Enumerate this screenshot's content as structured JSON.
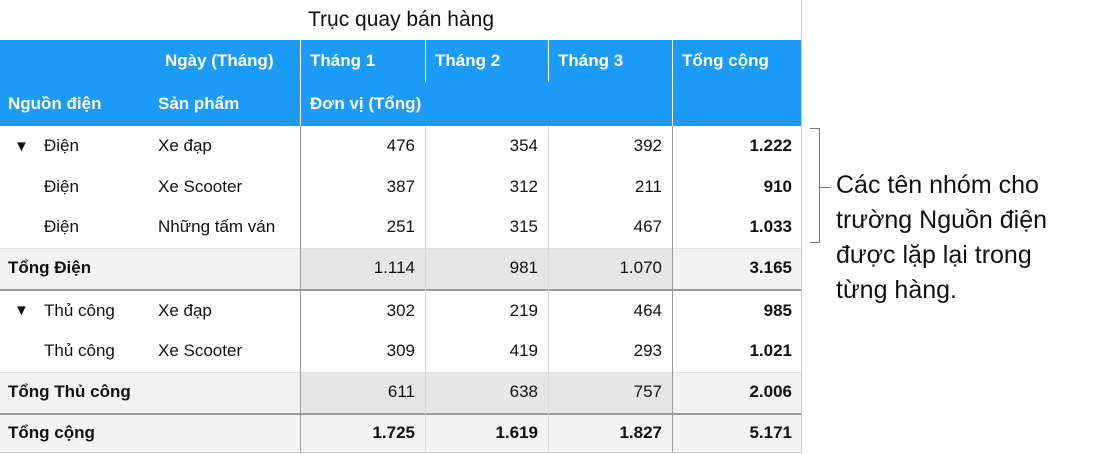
{
  "title": "Trục quay bán hàng",
  "header": {
    "row1": [
      "Ngày (Tháng)",
      "Tháng 1",
      "Tháng 2",
      "Tháng 3",
      "Tổng cộng"
    ],
    "row2": [
      "Nguồn điện",
      "Sản phẩm",
      "Đơn vị (Tổng)"
    ]
  },
  "groups": [
    {
      "rows": [
        {
          "source": "Điện",
          "product": "Xe đạp",
          "values": [
            "476",
            "354",
            "392"
          ],
          "total": "1.222"
        },
        {
          "source": "Điện",
          "product": "Xe Scooter",
          "values": [
            "387",
            "312",
            "211"
          ],
          "total": "910"
        },
        {
          "source": "Điện",
          "product": "Những tấm ván",
          "values": [
            "251",
            "315",
            "467"
          ],
          "total": "1.033"
        }
      ],
      "subtotal": {
        "label": "Tổng Điện",
        "values": [
          "1.114",
          "981",
          "1.070"
        ],
        "total": "3.165"
      }
    },
    {
      "rows": [
        {
          "source": "Thủ công",
          "product": "Xe đạp",
          "values": [
            "302",
            "219",
            "464"
          ],
          "total": "985"
        },
        {
          "source": "Thủ công",
          "product": "Xe Scooter",
          "values": [
            "309",
            "419",
            "293"
          ],
          "total": "1.021"
        }
      ],
      "subtotal": {
        "label": "Tổng Thủ công",
        "values": [
          "611",
          "638",
          "757"
        ],
        "total": "2.006"
      }
    }
  ],
  "grand_total": {
    "label": "Tổng cộng",
    "values": [
      "1.725",
      "1.619",
      "1.827"
    ],
    "total": "5.171"
  },
  "annotation": {
    "lines": [
      "Các tên nhóm cho",
      "trường Nguồn điện",
      "được lặp lại trong",
      "từng hàng."
    ]
  }
}
